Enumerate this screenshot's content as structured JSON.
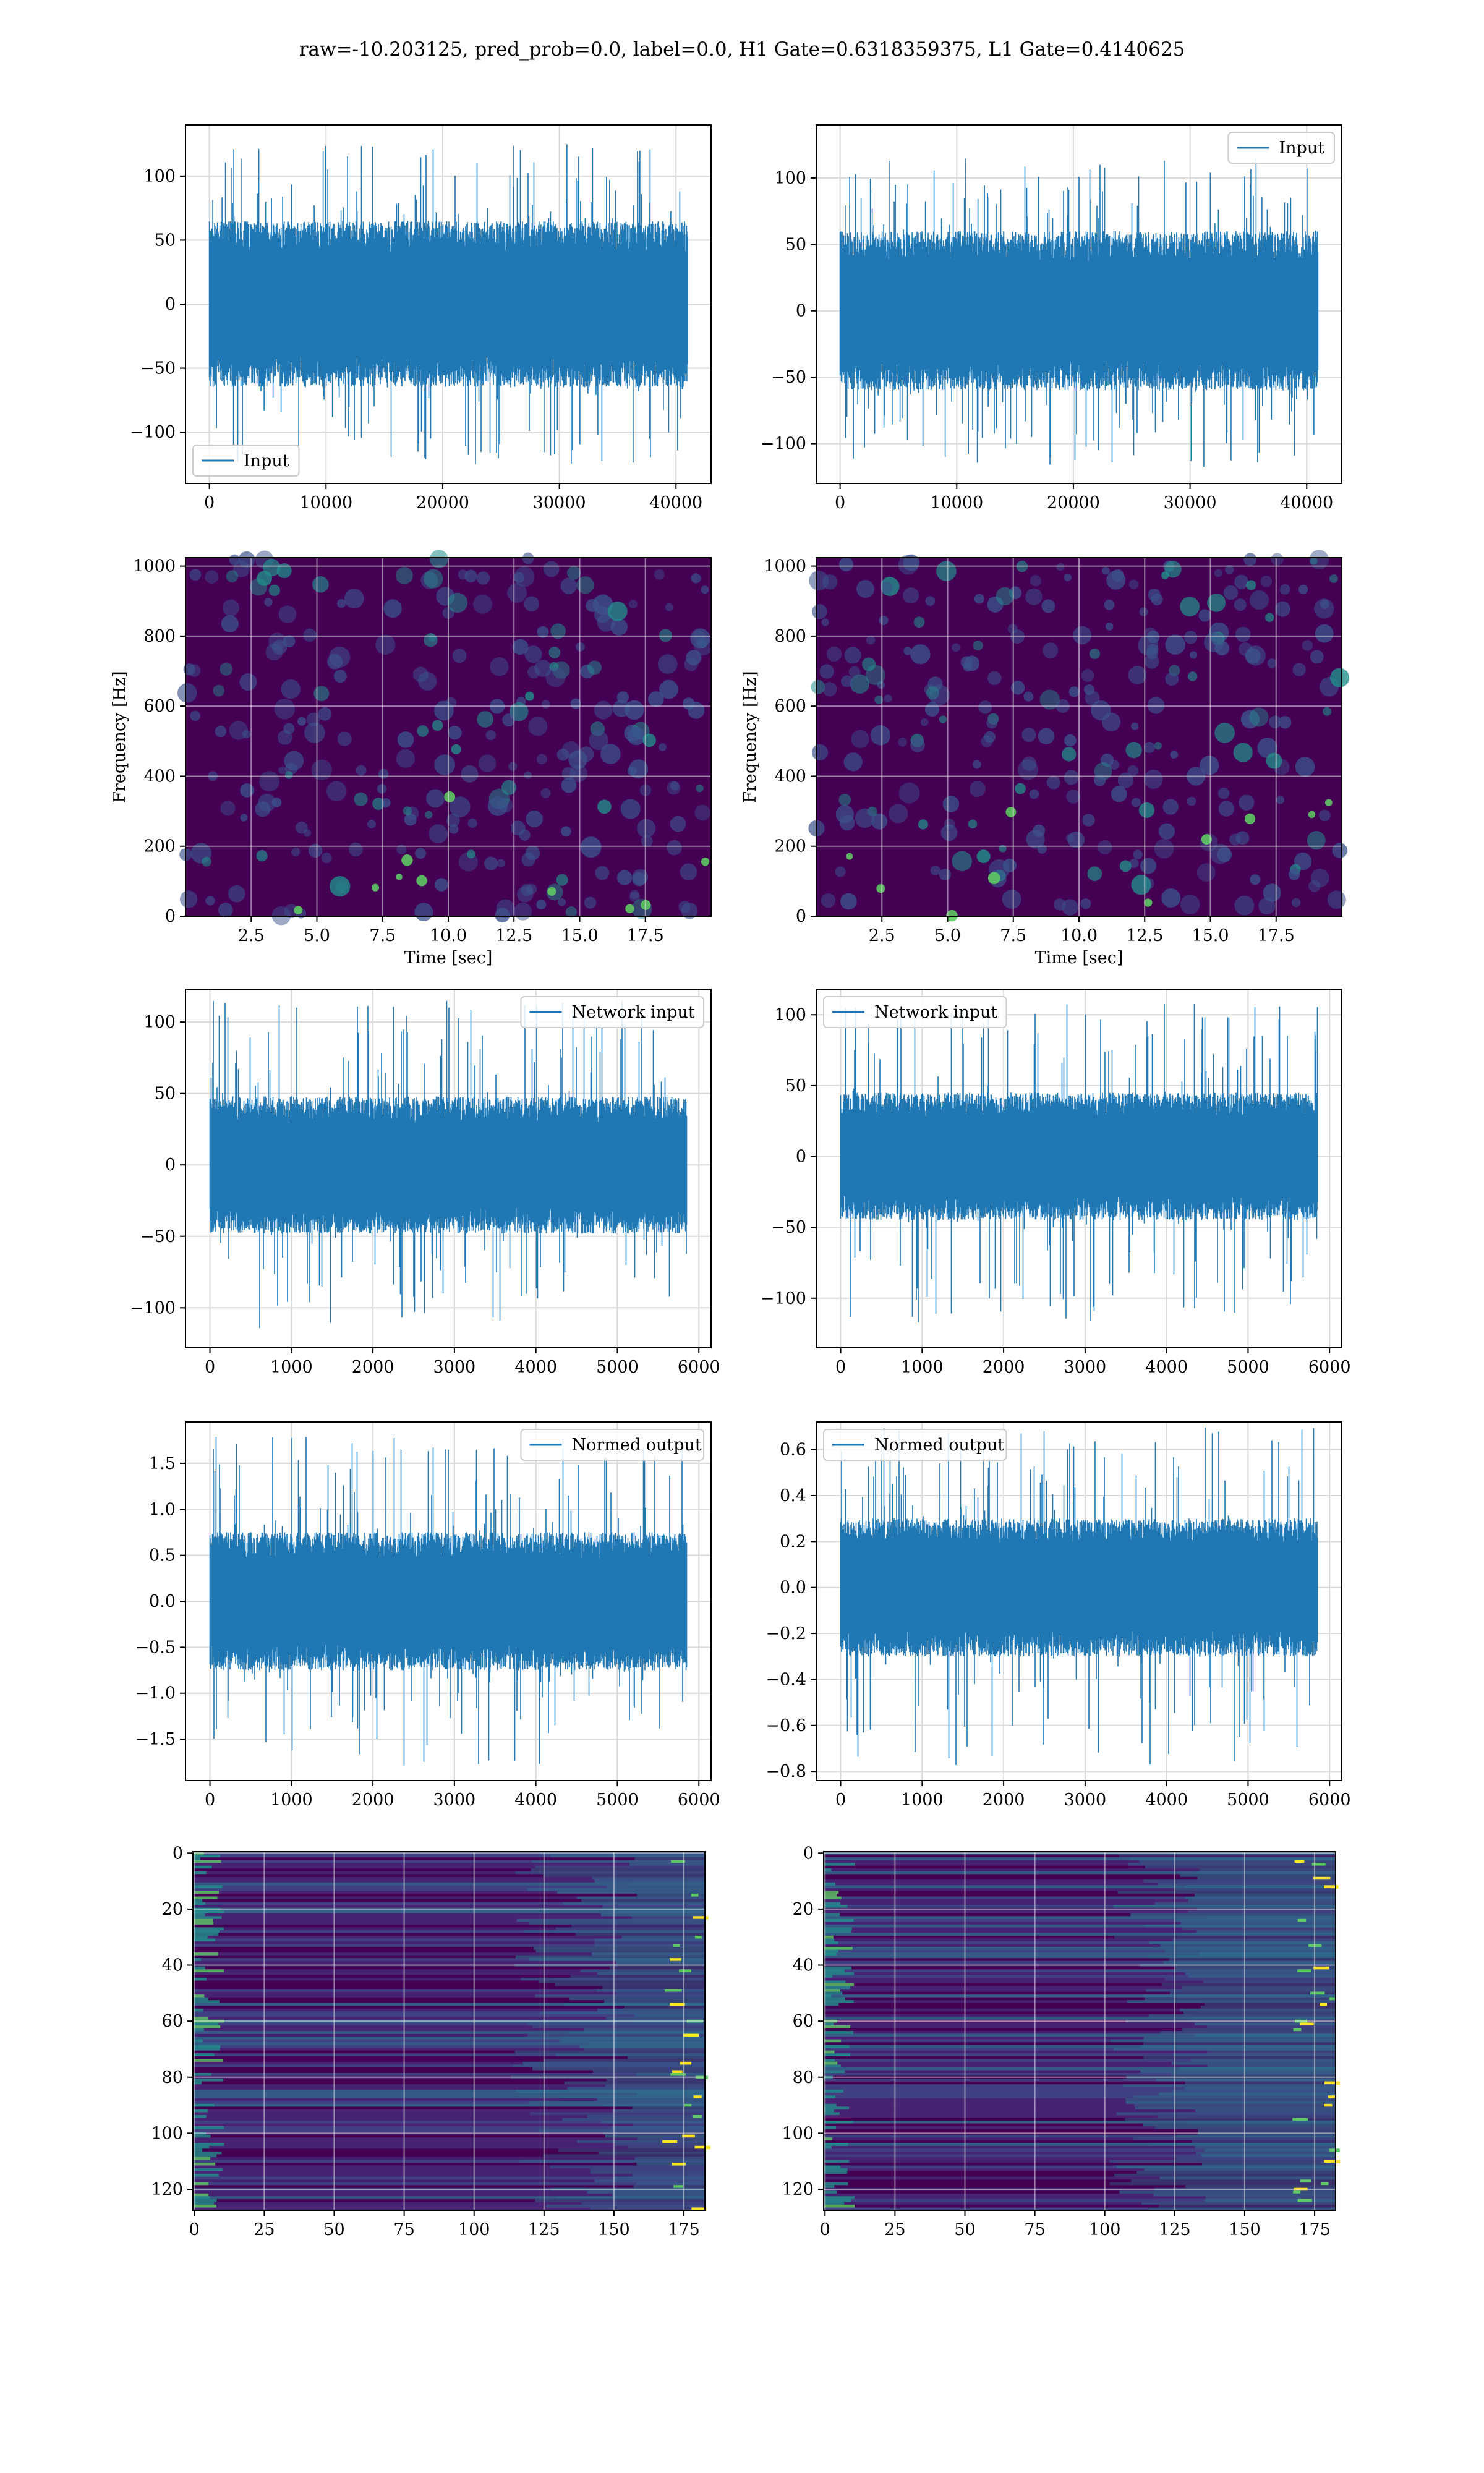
{
  "figure": {
    "title": "raw=-10.203125, pred_prob=0.0, label=0.0, H1 Gate=0.6318359375, L1 Gate=0.4140625"
  },
  "colors": {
    "series": "#1f77b4",
    "grid": "#d9d9d9",
    "viridis_low": "#440154",
    "viridis_mid": "#21918c",
    "viridis_high": "#fde725"
  },
  "chart_data": [
    {
      "id": "h1-input",
      "type": "line",
      "grid": true,
      "x": {
        "lim": [
          -2048,
          43008
        ],
        "ticks": [
          0,
          10000,
          20000,
          30000,
          40000
        ]
      },
      "y": {
        "lim": [
          -140,
          140
        ],
        "ticks": [
          -100,
          -50,
          0,
          50,
          100
        ]
      },
      "series": [
        {
          "name": "Input",
          "n_samples": 40960,
          "x_range": [
            0,
            40960
          ],
          "envelope": [
            -125,
            125
          ],
          "typical": [
            -65,
            65
          ]
        }
      ],
      "legend": "lower-left"
    },
    {
      "id": "l1-input",
      "type": "line",
      "grid": true,
      "x": {
        "lim": [
          -2048,
          43008
        ],
        "ticks": [
          0,
          10000,
          20000,
          30000,
          40000
        ]
      },
      "y": {
        "lim": [
          -130,
          140
        ],
        "ticks": [
          -100,
          -50,
          0,
          50,
          100
        ]
      },
      "series": [
        {
          "name": "Input",
          "n_samples": 40960,
          "x_range": [
            0,
            40960
          ],
          "envelope": [
            -120,
            115
          ],
          "typical": [
            -60,
            60
          ]
        }
      ],
      "legend": "upper-right"
    },
    {
      "id": "h1-spectrogram",
      "type": "heatmap",
      "grid": true,
      "xlabel": "Time [sec]",
      "ylabel": "Frequency [Hz]",
      "x": {
        "lim": [
          0,
          20
        ],
        "ticks": [
          2.5,
          5.0,
          7.5,
          10.0,
          12.5,
          15.0,
          17.5
        ]
      },
      "y": {
        "lim": [
          0,
          1024
        ],
        "ticks": [
          0,
          200,
          400,
          600,
          800,
          1000
        ]
      },
      "colormap": "viridis"
    },
    {
      "id": "l1-spectrogram",
      "type": "heatmap",
      "grid": true,
      "xlabel": "Time [sec]",
      "ylabel": "Frequency [Hz]",
      "x": {
        "lim": [
          0,
          20
        ],
        "ticks": [
          2.5,
          5.0,
          7.5,
          10.0,
          12.5,
          15.0,
          17.5
        ]
      },
      "y": {
        "lim": [
          0,
          1024
        ],
        "ticks": [
          0,
          200,
          400,
          600,
          800,
          1000
        ]
      },
      "colormap": "viridis"
    },
    {
      "id": "h1-network-input",
      "type": "line",
      "grid": true,
      "x": {
        "lim": [
          -300,
          6150
        ],
        "ticks": [
          0,
          1000,
          2000,
          3000,
          4000,
          5000,
          6000
        ]
      },
      "y": {
        "lim": [
          -128,
          123
        ],
        "ticks": [
          -100,
          -50,
          0,
          50,
          100
        ]
      },
      "series": [
        {
          "name": "Network input",
          "n_samples": 5850,
          "x_range": [
            0,
            5850
          ],
          "envelope": [
            -115,
            115
          ],
          "typical": [
            -48,
            48
          ]
        }
      ],
      "legend": "upper-right"
    },
    {
      "id": "l1-network-input",
      "type": "line",
      "grid": true,
      "x": {
        "lim": [
          -300,
          6150
        ],
        "ticks": [
          0,
          1000,
          2000,
          3000,
          4000,
          5000,
          6000
        ]
      },
      "y": {
        "lim": [
          -135,
          118
        ],
        "ticks": [
          -100,
          -50,
          0,
          50,
          100
        ]
      },
      "series": [
        {
          "name": "Network input",
          "n_samples": 5850,
          "x_range": [
            0,
            5850
          ],
          "envelope": [
            -120,
            108
          ],
          "typical": [
            -45,
            45
          ]
        }
      ],
      "legend": "upper-left"
    },
    {
      "id": "h1-normed-output",
      "type": "line",
      "grid": true,
      "x": {
        "lim": [
          -300,
          6150
        ],
        "ticks": [
          0,
          1000,
          2000,
          3000,
          4000,
          5000,
          6000
        ]
      },
      "y": {
        "lim": [
          -1.95,
          1.95
        ],
        "ticks": [
          -1.5,
          -1.0,
          -0.5,
          0.0,
          0.5,
          1.0,
          1.5
        ]
      },
      "series": [
        {
          "name": "Normed output",
          "n_samples": 5850,
          "x_range": [
            0,
            5850
          ],
          "envelope": [
            -1.8,
            1.8
          ],
          "typical": [
            -0.75,
            0.75
          ]
        }
      ],
      "legend": "upper-right"
    },
    {
      "id": "l1-normed-output",
      "type": "line",
      "grid": true,
      "x": {
        "lim": [
          -300,
          6150
        ],
        "ticks": [
          0,
          1000,
          2000,
          3000,
          4000,
          5000,
          6000
        ]
      },
      "y": {
        "lim": [
          -0.84,
          0.72
        ],
        "ticks": [
          -0.8,
          -0.6,
          -0.4,
          -0.2,
          0.0,
          0.2,
          0.4,
          0.6
        ]
      },
      "series": [
        {
          "name": "Normed output",
          "n_samples": 5850,
          "x_range": [
            0,
            5850
          ],
          "envelope": [
            -0.78,
            0.7
          ],
          "typical": [
            -0.3,
            0.3
          ]
        }
      ],
      "legend": "upper-left"
    },
    {
      "id": "h1-features",
      "type": "heatmap",
      "grid": true,
      "x": {
        "lim": [
          -0.5,
          182.5
        ],
        "ticks": [
          0,
          25,
          50,
          75,
          100,
          125,
          150,
          175
        ]
      },
      "y": {
        "lim": [
          127.5,
          -0.5
        ],
        "ticks": [
          0,
          20,
          40,
          60,
          80,
          100,
          120
        ]
      },
      "colormap": "viridis"
    },
    {
      "id": "l1-features",
      "type": "heatmap",
      "grid": true,
      "x": {
        "lim": [
          -0.5,
          182.5
        ],
        "ticks": [
          0,
          25,
          50,
          75,
          100,
          125,
          150,
          175
        ]
      },
      "y": {
        "lim": [
          127.5,
          -0.5
        ],
        "ticks": [
          0,
          20,
          40,
          60,
          80,
          100,
          120
        ]
      },
      "colormap": "viridis"
    }
  ]
}
